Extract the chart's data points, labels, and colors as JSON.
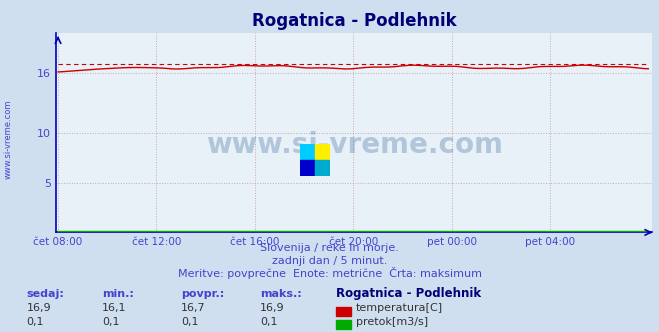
{
  "title": "Rogatnica - Podlehnik",
  "bg_color": "#d0dff0",
  "plot_bg_color": "#e8f0f8",
  "grid_color": "#c8a8a8",
  "temp_color": "#cc0000",
  "flow_color": "#00aa00",
  "x_labels": [
    "čet 08:00",
    "čet 12:00",
    "čet 16:00",
    "čet 20:00",
    "pet 00:00",
    "pet 04:00"
  ],
  "x_ticks": [
    0,
    48,
    96,
    144,
    192,
    240
  ],
  "x_max": 288,
  "y_min": 0,
  "y_max": 20,
  "temp_max": 16.9,
  "temp_min": 16.1,
  "temp_avg": 16.7,
  "temp_now": 16.9,
  "flow_min": 0.1,
  "flow_max": 0.1,
  "flow_avg": 0.1,
  "flow_now": 0.1,
  "station_name": "Rogatnica - Podlehnik",
  "subtitle1": "Slovenija / reke in morje.",
  "subtitle2": "zadnji dan / 5 minut.",
  "subtitle3": "Meritve: povprečne  Enote: metrične  Črta: maksimum",
  "label_color": "#4444cc",
  "title_color": "#000077",
  "watermark": "www.si-vreme.com",
  "axis_color": "#0000bb"
}
